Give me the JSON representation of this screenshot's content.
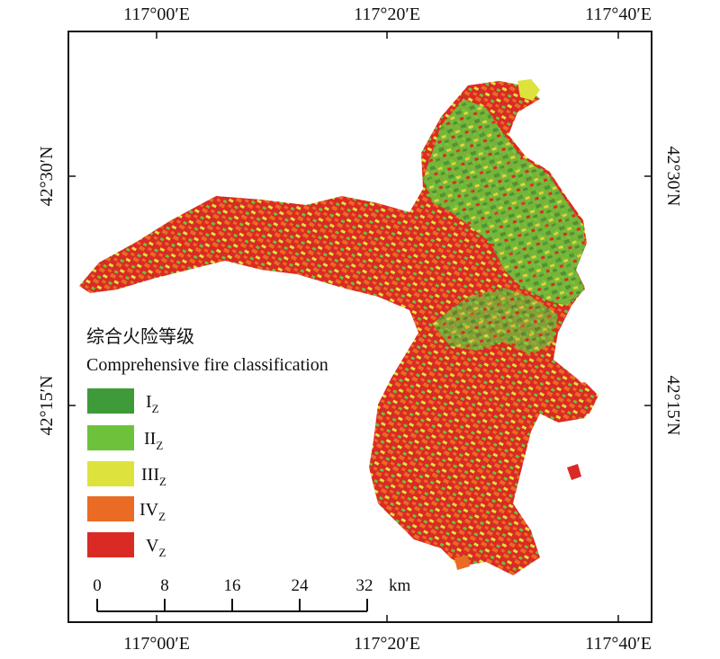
{
  "map": {
    "top_ticks": [
      "117°00′E",
      "117°20′E",
      "117°40′E"
    ],
    "bottom_ticks": [
      "117°00′E",
      "117°20′E",
      "117°40′E"
    ],
    "left_ticks": [
      "42°30′N",
      "42°15′N"
    ],
    "right_ticks": [
      "42°30′N",
      "42°15′N"
    ]
  },
  "legend": {
    "title_zh": "综合火险等级",
    "title_en": "Comprehensive fire classification",
    "items": [
      {
        "label": "I",
        "sub": "Z",
        "color": "#3f9a3a"
      },
      {
        "label": "II",
        "sub": "Z",
        "color": "#6cc23a"
      },
      {
        "label": "III",
        "sub": "Z",
        "color": "#dde33c"
      },
      {
        "label": "IV",
        "sub": "Z",
        "color": "#ea6b23"
      },
      {
        "label": "V",
        "sub": "Z",
        "color": "#da2a25"
      }
    ]
  },
  "scale_bar": {
    "ticks": [
      "0",
      "8",
      "16",
      "24",
      "32"
    ],
    "unit": "km"
  }
}
